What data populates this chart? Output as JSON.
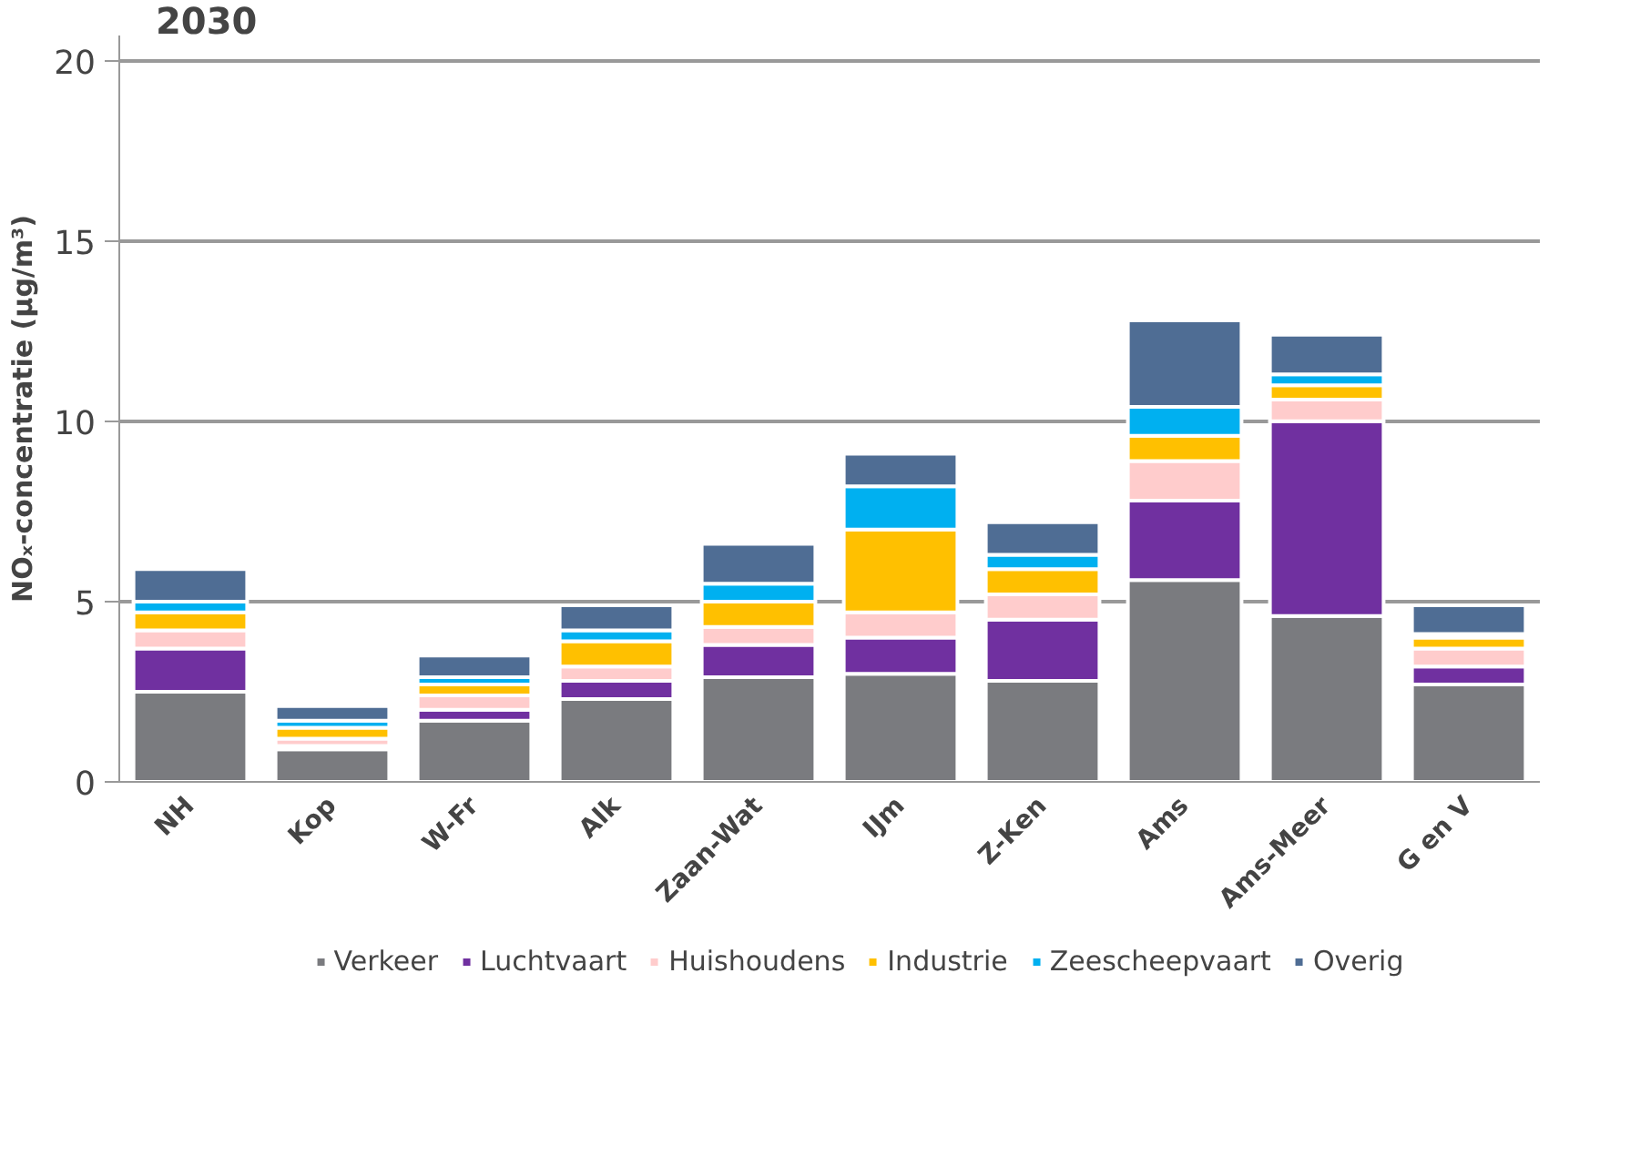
{
  "chart_data": {
    "type": "bar",
    "stacked": true,
    "title": "2030",
    "ylabel": "NOₓ-concentratie (µg/m³)",
    "categories": [
      "NH",
      "Kop",
      "W-Fr",
      "Alk",
      "Zaan-Wat",
      "IJm",
      "Z-Ken",
      "Ams",
      "Ams-Meer",
      "G en V"
    ],
    "series": [
      {
        "name": "Verkeer",
        "color": "#7a7b7f",
        "values": [
          2.5,
          0.9,
          1.7,
          2.3,
          2.9,
          3.0,
          2.8,
          5.6,
          4.6,
          2.7
        ]
      },
      {
        "name": "Luchtvaart",
        "color": "#7030a0",
        "values": [
          1.2,
          0.1,
          0.3,
          0.5,
          0.9,
          1.0,
          1.7,
          2.2,
          5.4,
          0.5
        ]
      },
      {
        "name": "Huishoudens",
        "color": "#ffcccc",
        "values": [
          0.5,
          0.2,
          0.4,
          0.4,
          0.5,
          0.7,
          0.7,
          1.1,
          0.6,
          0.5
        ]
      },
      {
        "name": "Industrie",
        "color": "#ffc000",
        "values": [
          0.5,
          0.3,
          0.3,
          0.7,
          0.7,
          2.3,
          0.7,
          0.7,
          0.4,
          0.3
        ]
      },
      {
        "name": "Zeescheepvaart",
        "color": "#00b0f0",
        "values": [
          0.3,
          0.2,
          0.2,
          0.3,
          0.5,
          1.2,
          0.4,
          0.8,
          0.3,
          0.1
        ]
      },
      {
        "name": "Overig",
        "color": "#4f6d94",
        "values": [
          0.9,
          0.4,
          0.6,
          0.7,
          1.1,
          0.9,
          0.9,
          2.4,
          1.1,
          0.8
        ]
      }
    ],
    "ylim": [
      0,
      20.7
    ],
    "yticks": [
      0,
      5,
      10,
      15,
      20
    ],
    "grid": "y",
    "legend": "bottom"
  }
}
